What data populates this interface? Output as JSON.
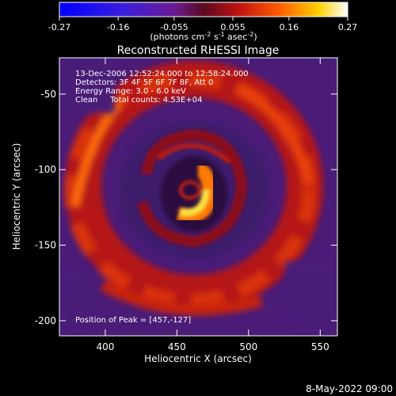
{
  "colorbar": {
    "ticks": [
      "-0.27",
      "-0.16",
      "-0.055",
      "0.055",
      "0.16",
      "0.27"
    ],
    "units_main": "(photons cm",
    "units_sup1": "-2",
    "units_mid": " s",
    "units_sup2": "-1",
    "units_mid2": " asec",
    "units_sup3": "-2",
    "units_end": ")",
    "range": [
      -0.27,
      0.27
    ]
  },
  "chart_data": {
    "type": "heatmap",
    "title": "Reconstructed RHESSI Image",
    "xlabel": "Heliocentric X (arcsec)",
    "ylabel": "Heliocentric Y (arcsec)",
    "xlim": [
      368,
      562
    ],
    "ylim": [
      -210,
      -26
    ],
    "x_ticks": [
      400,
      450,
      500,
      550
    ],
    "y_ticks": [
      -50,
      -100,
      -150,
      -200
    ],
    "peak": {
      "x": 457,
      "y": -127
    },
    "annotations": [
      "13-Dec-2006 12:52:24.000 to 12:58:24.000",
      "Detectors: 3F 4F 5F 6F 7F 8F, Att 0",
      "Energy Range: 3.0 - 6.0 keV",
      "Clean     Total counts: 4.53E+04"
    ],
    "peak_label": "Position of Peak = [457,-127]"
  },
  "footer_date": "8-May-2022 09:00"
}
